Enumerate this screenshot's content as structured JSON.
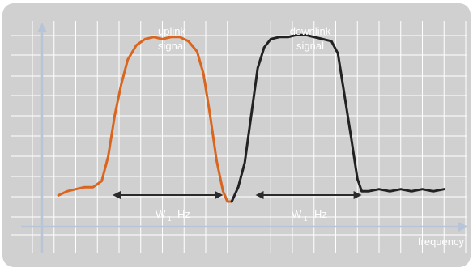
{
  "chart_data": {
    "type": "line",
    "title": "",
    "xlabel": "frequency",
    "ylabel": "",
    "grid": true,
    "xlim": [
      0,
      20
    ],
    "ylim": [
      0,
      10
    ],
    "colors": {
      "background": "#d0d0d0",
      "grid": "#ffffff",
      "axis": "#b8c4d8",
      "uplink": "#d9651f",
      "downlink": "#222222",
      "arrow": "#2b2b2b",
      "text": "#ffffff"
    },
    "annotations": [
      {
        "id": "uplink",
        "lines": [
          "uplink",
          "signal"
        ]
      },
      {
        "id": "downlink",
        "lines": [
          "downlink",
          "signal"
        ]
      }
    ],
    "bandwidth_labels": [
      {
        "id": "uplink",
        "main": "W",
        "sub": "1",
        "unit": "Hz",
        "from": 3.7,
        "to": 8.8
      },
      {
        "id": "downlink",
        "main": "W",
        "sub": "1",
        "unit": "Hz",
        "from": 10.3,
        "to": 15.2
      }
    ],
    "series": [
      {
        "id": "uplink",
        "color_key": "uplink",
        "x": [
          1.2,
          1.6,
          2.0,
          2.4,
          2.8,
          3.2,
          3.5,
          3.8,
          4.1,
          4.4,
          4.8,
          5.2,
          5.6,
          6.0,
          6.4,
          6.8,
          7.2,
          7.6,
          7.9,
          8.2,
          8.5,
          8.8,
          9.0,
          9.2
        ],
        "y": [
          1.6,
          1.8,
          1.9,
          2.0,
          2.0,
          2.3,
          3.5,
          5.5,
          7.0,
          8.2,
          8.9,
          9.2,
          9.3,
          9.2,
          9.3,
          9.3,
          9.1,
          8.6,
          7.5,
          5.5,
          3.3,
          1.8,
          1.3,
          1.3
        ]
      },
      {
        "id": "downlink",
        "color_key": "downlink",
        "x": [
          9.2,
          9.5,
          9.8,
          10.1,
          10.4,
          10.7,
          11.0,
          11.4,
          11.8,
          12.2,
          12.6,
          13.0,
          13.4,
          13.8,
          14.1,
          14.4,
          14.7,
          15.0,
          15.2,
          15.5,
          16.0,
          16.5,
          17.0,
          17.5,
          18.0,
          18.5,
          19.0
        ],
        "y": [
          1.3,
          2.0,
          3.2,
          5.5,
          7.8,
          8.8,
          9.2,
          9.3,
          9.3,
          9.4,
          9.4,
          9.3,
          9.2,
          9.1,
          8.5,
          6.5,
          4.5,
          2.4,
          1.8,
          1.8,
          1.9,
          1.8,
          1.9,
          1.8,
          1.9,
          1.8,
          1.9
        ]
      }
    ]
  }
}
